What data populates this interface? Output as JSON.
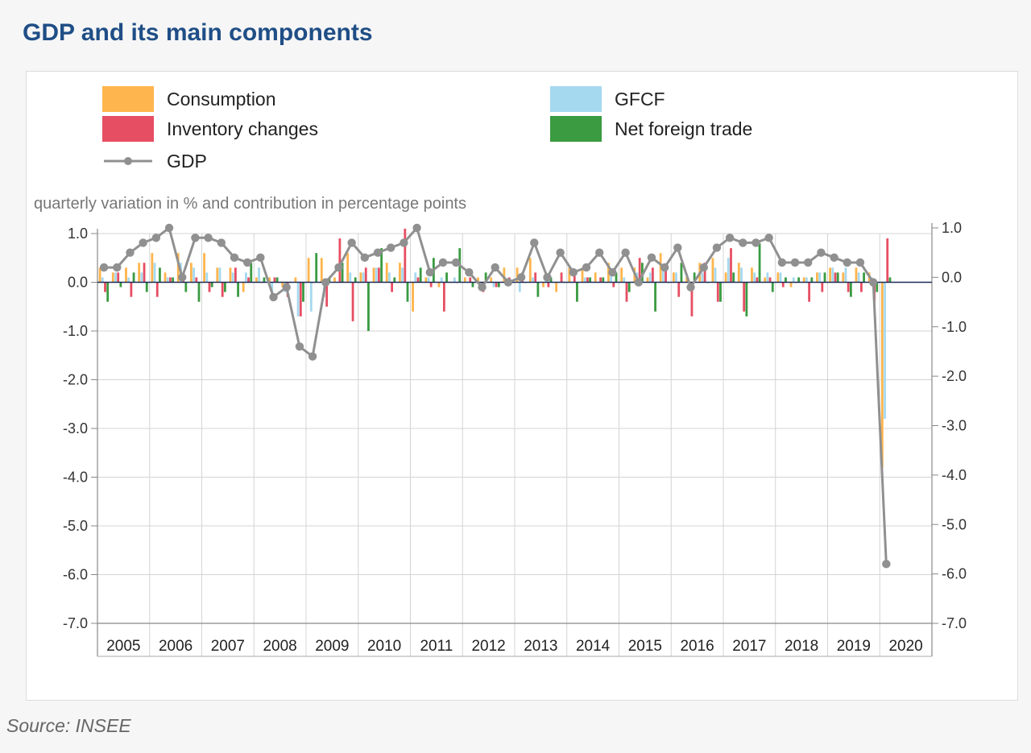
{
  "header": {
    "title": "GDP and its main components"
  },
  "footer": {
    "source": "Source: INSEE"
  },
  "chart_data": {
    "type": "bar",
    "title": "GDP and its main components",
    "ylabel": "quarterly variation in % and contribution in percentage points",
    "ylim": [
      -7.0,
      1.0
    ],
    "yticks_left": [
      "1.0",
      "0.0",
      "-1.0",
      "-2.0",
      "-3.0",
      "-4.0",
      "-5.0",
      "-6.0",
      "-7.0"
    ],
    "yticks_right": [
      "1.0",
      "0.0",
      "-1.0",
      "-2.0",
      "-3.0",
      "-4.0",
      "-5.0",
      "-6.0",
      "-7.0"
    ],
    "y2lim": [
      -7.0,
      1.0
    ],
    "grid": true,
    "legend_position": "top",
    "years": [
      "2005",
      "2006",
      "2007",
      "2008",
      "2009",
      "2010",
      "2011",
      "2012",
      "2013",
      "2014",
      "2015",
      "2016",
      "2017",
      "2018",
      "2019",
      "2020"
    ],
    "quarters": [
      "2005Q1",
      "2005Q2",
      "2005Q3",
      "2005Q4",
      "2006Q1",
      "2006Q2",
      "2006Q3",
      "2006Q4",
      "2007Q1",
      "2007Q2",
      "2007Q3",
      "2007Q4",
      "2008Q1",
      "2008Q2",
      "2008Q3",
      "2008Q4",
      "2009Q1",
      "2009Q2",
      "2009Q3",
      "2009Q4",
      "2010Q1",
      "2010Q2",
      "2010Q3",
      "2010Q4",
      "2011Q1",
      "2011Q2",
      "2011Q3",
      "2011Q4",
      "2012Q1",
      "2012Q2",
      "2012Q3",
      "2012Q4",
      "2013Q1",
      "2013Q2",
      "2013Q3",
      "2013Q4",
      "2014Q1",
      "2014Q2",
      "2014Q3",
      "2014Q4",
      "2015Q1",
      "2015Q2",
      "2015Q3",
      "2015Q4",
      "2016Q1",
      "2016Q2",
      "2016Q3",
      "2016Q4",
      "2017Q1",
      "2017Q2",
      "2017Q3",
      "2017Q4",
      "2018Q1",
      "2018Q2",
      "2018Q3",
      "2018Q4",
      "2019Q1",
      "2019Q2",
      "2019Q3",
      "2019Q4",
      "2020Q1"
    ],
    "series": [
      {
        "name": "Consumption",
        "kind": "bar",
        "color": "#ffb54d",
        "values": [
          0.3,
          0.2,
          0.3,
          0.4,
          0.6,
          0.2,
          0.6,
          0.4,
          0.6,
          0.3,
          0.3,
          -0.2,
          0.1,
          0.1,
          -0.1,
          0.1,
          0.5,
          0.5,
          0.1,
          0.6,
          0.2,
          0.3,
          0.4,
          0.4,
          -0.6,
          0.1,
          -0.1,
          0.0,
          0.1,
          0.1,
          0.1,
          0.3,
          0.3,
          0.5,
          -0.1,
          -0.2,
          0.3,
          0.3,
          0.2,
          0.4,
          0.3,
          0.3,
          0.1,
          0.6,
          0.2,
          0.1,
          0.4,
          0.5,
          0.2,
          0.4,
          0.3,
          0.1,
          0.2,
          -0.1,
          0.1,
          0.2,
          0.3,
          0.2,
          0.3,
          0.2,
          -3.8
        ]
      },
      {
        "name": "GFCF",
        "kind": "bar",
        "color": "#a5d9ef",
        "values": [
          0.1,
          0.2,
          0.1,
          0.2,
          0.4,
          0.1,
          0.4,
          0.3,
          0.2,
          0.3,
          0.2,
          0.2,
          0.3,
          -0.3,
          -0.2,
          -0.7,
          -0.6,
          -0.3,
          0.0,
          0.2,
          0.2,
          0.3,
          0.2,
          0.3,
          0.2,
          0.1,
          0.1,
          0.1,
          0.0,
          -0.1,
          -0.1,
          0.0,
          -0.2,
          0.1,
          0.1,
          0.0,
          0.0,
          0.1,
          0.0,
          0.2,
          0.1,
          0.2,
          0.2,
          0.3,
          0.2,
          0.0,
          0.2,
          0.3,
          0.5,
          0.3,
          0.2,
          0.2,
          0.2,
          0.1,
          0.1,
          0.2,
          0.3,
          0.3,
          0.2,
          0.1,
          -2.8
        ]
      },
      {
        "name": "Inventory changes",
        "kind": "bar",
        "color": "#e64e63",
        "values": [
          -0.2,
          0.2,
          -0.3,
          0.4,
          -0.3,
          0.1,
          0.1,
          0.1,
          -0.2,
          -0.3,
          0.3,
          0.1,
          0.0,
          0.1,
          -0.3,
          -0.7,
          0.0,
          -0.5,
          0.9,
          -0.8,
          0.3,
          0.3,
          -0.2,
          1.1,
          0.1,
          -0.1,
          -0.6,
          0.0,
          0.1,
          -0.2,
          -0.1,
          0.1,
          0.2,
          0.2,
          -0.1,
          0.2,
          0.2,
          0.1,
          0.1,
          -0.1,
          -0.4,
          0.5,
          0.3,
          0.3,
          -0.3,
          -0.7,
          0.4,
          -0.4,
          0.7,
          -0.6,
          0.1,
          0.1,
          -0.1,
          0.0,
          -0.4,
          -0.2,
          0.2,
          -0.2,
          -0.2,
          -0.4,
          0.9
        ]
      },
      {
        "name": "Net foreign trade",
        "kind": "bar",
        "color": "#3a9b41",
        "values": [
          -0.4,
          -0.1,
          0.2,
          -0.2,
          0.3,
          0.1,
          -0.2,
          -0.4,
          -0.1,
          -0.2,
          -0.3,
          0.4,
          0.1,
          0.1,
          0.0,
          -0.4,
          0.6,
          0.1,
          0.4,
          0.1,
          -1.0,
          0.7,
          0.1,
          -0.4,
          0.3,
          0.5,
          0.2,
          0.7,
          -0.1,
          0.2,
          -0.1,
          0.0,
          0.0,
          -0.3,
          0.1,
          0.0,
          -0.4,
          0.1,
          0.1,
          0.2,
          -0.2,
          0.4,
          -0.6,
          0.0,
          0.4,
          0.2,
          0.0,
          -0.4,
          0.2,
          -0.7,
          0.8,
          -0.2,
          0.1,
          0.1,
          0.1,
          0.2,
          0.2,
          -0.3,
          0.2,
          -0.2,
          0.1
        ]
      },
      {
        "name": "GDP",
        "kind": "line",
        "color": "#909090",
        "values": [
          0.2,
          0.2,
          0.5,
          0.7,
          0.8,
          1.0,
          0.0,
          0.8,
          0.8,
          0.7,
          0.4,
          0.3,
          0.4,
          -0.4,
          -0.2,
          -1.4,
          -1.6,
          -0.1,
          0.2,
          0.7,
          0.4,
          0.5,
          0.6,
          0.7,
          1.0,
          0.1,
          0.3,
          0.3,
          0.1,
          -0.2,
          0.2,
          -0.1,
          0.0,
          0.7,
          0.0,
          0.5,
          0.1,
          0.2,
          0.5,
          0.1,
          0.5,
          -0.1,
          0.4,
          0.2,
          0.6,
          -0.2,
          0.2,
          0.6,
          0.8,
          0.7,
          0.7,
          0.8,
          0.3,
          0.3,
          0.3,
          0.5,
          0.4,
          0.3,
          0.3,
          -0.1,
          -5.8
        ]
      }
    ]
  }
}
